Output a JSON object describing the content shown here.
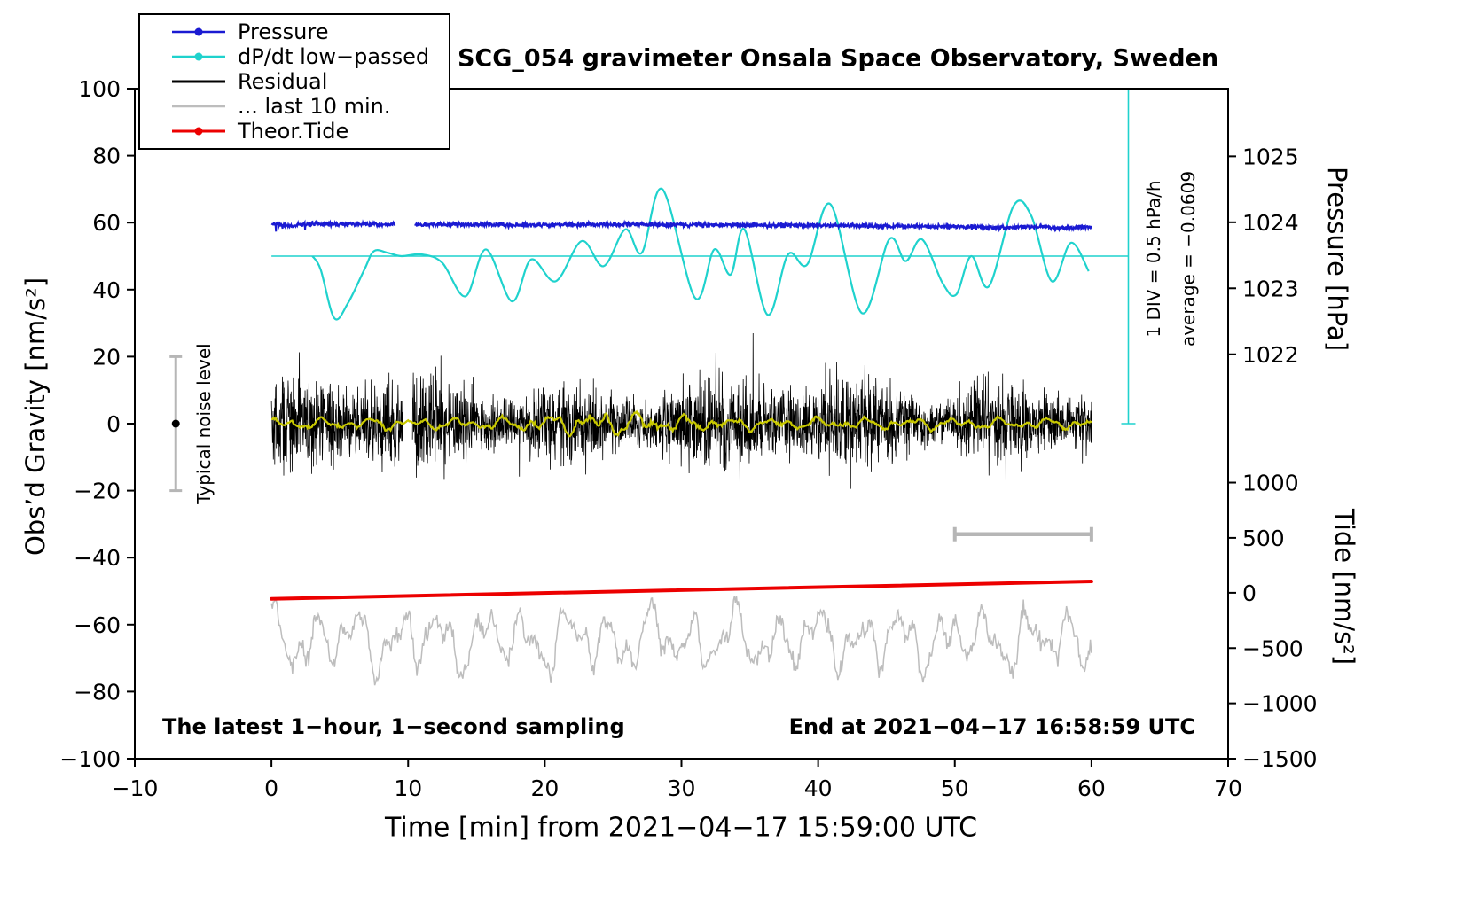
{
  "chart_data": {
    "type": "line",
    "title": "SCG_054 gravimeter Onsala Space Observatory, Sweden",
    "xlabel": "Time [min] from 2021−04−17 15:59:00 UTC",
    "ylabel": "Obs’d Gravity [nm/s²]",
    "xlim": [
      -10,
      70
    ],
    "ylim": [
      -100,
      100
    ],
    "xticks": [
      -10,
      0,
      10,
      20,
      30,
      40,
      50,
      60,
      70
    ],
    "yticks": [
      100,
      80,
      60,
      40,
      20,
      0,
      -20,
      -40,
      -60,
      -80,
      -100
    ],
    "grid": false,
    "legend_position": "top-left",
    "right_axes": [
      {
        "label": "Pressure [hPa]",
        "ticks": [
          1025,
          1024,
          1023,
          1022
        ],
        "gravity_positions": [
          79.8,
          60.1,
          40.4,
          20.7
        ]
      },
      {
        "label": "Tide [nm/s²]",
        "ticks": [
          1000,
          500,
          0,
          -500,
          -1000,
          -1500
        ],
        "gravity_positions": [
          -17.6,
          -34.1,
          -50.5,
          -67.0,
          -83.5,
          -100
        ]
      }
    ],
    "series": [
      {
        "id": "pressure",
        "name": "Pressure",
        "color": "#1a1ad2",
        "width": 2,
        "axis": "pressure-right",
        "approx_level_hpa": 1024.0,
        "gap_min": [
          9.05,
          10.45
        ],
        "step_min": 0.03,
        "noise_sigma": 0.55,
        "base_points": [
          [
            0,
            59.8
          ],
          [
            0.7,
            59.2
          ],
          [
            1.3,
            58.8
          ],
          [
            2,
            59.4
          ],
          [
            3,
            59.6
          ],
          [
            6,
            59.5
          ],
          [
            9,
            59.5
          ],
          [
            10.45,
            59.4
          ],
          [
            14,
            59.5
          ],
          [
            18,
            59.3
          ],
          [
            22,
            59.4
          ],
          [
            26,
            59.5
          ],
          [
            30,
            59.4
          ],
          [
            34,
            59.3
          ],
          [
            38,
            59.2
          ],
          [
            42,
            59.1
          ],
          [
            45,
            59.0
          ],
          [
            48,
            58.9
          ],
          [
            50,
            58.8
          ],
          [
            52,
            58.6
          ],
          [
            53.5,
            58.4
          ],
          [
            55,
            58.8
          ],
          [
            56.5,
            58.9
          ],
          [
            57.5,
            58.3
          ],
          [
            58.5,
            58.6
          ],
          [
            60,
            58.8
          ]
        ]
      },
      {
        "id": "dpdt",
        "name": "dP/dt low−passed",
        "color": "#1fd2cd",
        "width": 2.2,
        "zero_line_gravity": 50,
        "div_value": "0.5 hPa/h",
        "average": -0.0609,
        "points": [
          [
            3,
            50
          ],
          [
            3.6,
            46
          ],
          [
            4.6,
            31.5
          ],
          [
            5.6,
            36
          ],
          [
            6.8,
            46
          ],
          [
            7.5,
            51.5
          ],
          [
            8.5,
            51
          ],
          [
            9.5,
            50
          ],
          [
            11,
            50.5
          ],
          [
            12.5,
            48
          ],
          [
            14.2,
            38
          ],
          [
            15.7,
            52
          ],
          [
            17.6,
            36.5
          ],
          [
            19,
            49
          ],
          [
            20.8,
            42.5
          ],
          [
            22.7,
            54.5
          ],
          [
            24.3,
            47
          ],
          [
            25.9,
            58
          ],
          [
            27.1,
            51
          ],
          [
            28.6,
            70
          ],
          [
            31,
            37.5
          ],
          [
            32.4,
            52
          ],
          [
            33.6,
            44.5
          ],
          [
            34.6,
            58
          ],
          [
            36.3,
            32.5
          ],
          [
            37.8,
            50.5
          ],
          [
            39.2,
            47.5
          ],
          [
            40.9,
            65.5
          ],
          [
            43.2,
            33
          ],
          [
            45.2,
            55
          ],
          [
            46.4,
            48.5
          ],
          [
            47.6,
            55
          ],
          [
            49.1,
            42
          ],
          [
            50.1,
            38.5
          ],
          [
            51.2,
            50
          ],
          [
            52.5,
            41
          ],
          [
            54.3,
            65
          ],
          [
            55.6,
            62
          ],
          [
            57.1,
            42.5
          ],
          [
            58.5,
            54
          ],
          [
            59.8,
            45.5
          ]
        ]
      },
      {
        "id": "residual",
        "name": "Residual",
        "color": "#000000",
        "width": 0.8,
        "mean": 0,
        "sigma": 11,
        "spike_prob": 0.006,
        "spike_scale": 2.2,
        "max_abs": 27,
        "step_min": 0.02,
        "gap_min": [
          9.6,
          10.3
        ]
      },
      {
        "id": "residual_smooth",
        "name": "Residual smoothed",
        "color": "#c9c900",
        "width": 2.2,
        "mean": 0,
        "amp": 2.2
      },
      {
        "id": "last10",
        "name": "... last 10 min.",
        "color": "#bdbdbd",
        "width": 1.5,
        "mean": -64.5,
        "amp": 8,
        "step_min": 0.07
      },
      {
        "id": "tide",
        "name": "Theor.Tide",
        "color": "#ec0000",
        "width": 4,
        "points": [
          [
            0,
            -52.3
          ],
          [
            60,
            -47.1
          ]
        ]
      }
    ],
    "annotations": {
      "div_note": "1 DIV = 0.5 hPa/h",
      "average_note": "average = −0.0609",
      "noise_label": "Typical noise level",
      "footer_left": "The latest 1−hour, 1−second sampling",
      "footer_right": "End at 2021−04−17 16:58:59 UTC"
    },
    "markers": {
      "dpdt_zero_line": {
        "gravity": 50,
        "x_from": 0,
        "x_to": 62.7,
        "color": "#1fd2cd"
      },
      "dpdt_ruler": {
        "x": 62.7,
        "gravity_top": 100,
        "gravity_bottom": 0,
        "color": "#1fd2cd"
      },
      "scale_bar": {
        "x_from": 50,
        "x_to": 60,
        "gravity": -33,
        "color": "#b6b6b6"
      },
      "noise_bar": {
        "x": -7,
        "gravity_from": -20,
        "gravity_to": 20,
        "dot_gravity": 0,
        "bar_color": "#b6b6b6",
        "dot_color": "#000000"
      }
    }
  },
  "legend": {
    "items": [
      {
        "label": "Pressure",
        "color": "#1a1ad2",
        "marker": true,
        "line_width": 2.5
      },
      {
        "label": "dP/dt low−passed",
        "color": "#1fd2cd",
        "marker": true,
        "line_width": 2.5
      },
      {
        "label": "Residual",
        "color": "#000000",
        "marker": false,
        "line_width": 3
      },
      {
        "label": "... last 10 min.",
        "color": "#bdbdbd",
        "marker": false,
        "line_width": 2.5
      },
      {
        "label": "Theor.Tide",
        "color": "#ec0000",
        "marker": true,
        "line_width": 3
      }
    ]
  }
}
